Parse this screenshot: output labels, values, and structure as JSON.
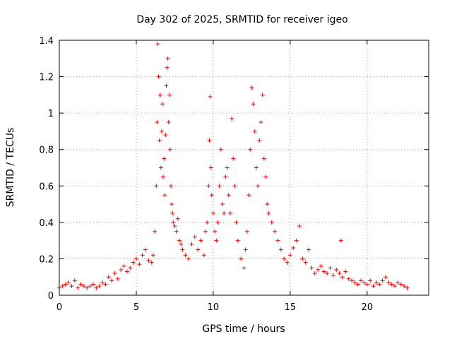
{
  "chart_data": {
    "type": "scatter",
    "title": "Day 302 of 2025, SRMTID for receiver igeo",
    "xlabel": "GPS time / hours",
    "ylabel": "SRMTID / TECUs",
    "xlim": [
      0,
      24
    ],
    "ylim": [
      0,
      1.4
    ],
    "xticks": [
      0,
      5,
      10,
      15,
      20
    ],
    "xtick_labels": [
      "0",
      "5",
      "10",
      "15",
      "20"
    ],
    "yticks": [
      0,
      0.2,
      0.4,
      0.6,
      0.8,
      1,
      1.2,
      1.4
    ],
    "ytick_labels": [
      "0",
      "0.2",
      "0.4",
      "0.6",
      "0.8",
      "1",
      "1.2",
      "1.4"
    ],
    "grid": true,
    "marker": "+",
    "series_color": "#ff0000",
    "series": [
      {
        "name": "SRMTID",
        "x": [
          0.0,
          0.2,
          0.4,
          0.6,
          0.8,
          1.0,
          1.2,
          1.4,
          1.6,
          1.8,
          2.0,
          2.2,
          2.4,
          2.6,
          2.8,
          3.0,
          3.2,
          3.4,
          3.6,
          3.8,
          4.0,
          4.2,
          4.4,
          4.6,
          4.8,
          5.0,
          5.2,
          5.4,
          5.6,
          5.8,
          6.0,
          6.1,
          6.2,
          6.3,
          6.35,
          6.4,
          6.45,
          6.5,
          6.55,
          6.6,
          6.65,
          6.7,
          6.75,
          6.8,
          6.85,
          6.9,
          6.95,
          7.0,
          7.05,
          7.1,
          7.15,
          7.2,
          7.25,
          7.3,
          7.35,
          7.4,
          7.5,
          7.6,
          7.7,
          7.8,
          7.9,
          8.0,
          8.2,
          8.4,
          8.6,
          8.8,
          9.0,
          9.2,
          9.4,
          9.5,
          9.6,
          9.7,
          9.75,
          9.8,
          9.85,
          9.9,
          10.0,
          10.1,
          10.2,
          10.3,
          10.4,
          10.5,
          10.6,
          10.7,
          10.8,
          10.9,
          11.0,
          11.1,
          11.2,
          11.3,
          11.4,
          11.5,
          11.6,
          11.8,
          12.0,
          12.1,
          12.2,
          12.3,
          12.4,
          12.5,
          12.6,
          12.7,
          12.8,
          12.9,
          13.0,
          13.1,
          13.2,
          13.3,
          13.4,
          13.5,
          13.6,
          13.8,
          14.0,
          14.2,
          14.4,
          14.6,
          14.8,
          15.0,
          15.2,
          15.4,
          15.6,
          15.8,
          16.0,
          16.2,
          16.4,
          16.6,
          16.8,
          17.0,
          17.2,
          17.4,
          17.6,
          17.8,
          18.0,
          18.2,
          18.3,
          18.4,
          18.6,
          18.8,
          19.0,
          19.2,
          19.4,
          19.6,
          19.8,
          20.0,
          20.2,
          20.4,
          20.6,
          20.8,
          21.0,
          21.2,
          21.4,
          21.6,
          21.8,
          22.0,
          22.2,
          22.4,
          22.6
        ],
        "y": [
          0.04,
          0.05,
          0.06,
          0.07,
          0.05,
          0.08,
          0.04,
          0.06,
          0.05,
          0.04,
          0.05,
          0.06,
          0.04,
          0.05,
          0.07,
          0.06,
          0.1,
          0.08,
          0.12,
          0.09,
          0.14,
          0.16,
          0.13,
          0.15,
          0.18,
          0.2,
          0.17,
          0.22,
          0.25,
          0.19,
          0.18,
          0.22,
          0.35,
          0.6,
          0.95,
          1.38,
          1.2,
          0.85,
          1.1,
          0.7,
          0.9,
          1.05,
          0.65,
          0.75,
          0.55,
          0.88,
          1.15,
          1.25,
          1.3,
          0.95,
          1.1,
          0.8,
          0.6,
          0.5,
          0.45,
          0.4,
          0.38,
          0.35,
          0.42,
          0.3,
          0.28,
          0.25,
          0.22,
          0.2,
          0.28,
          0.32,
          0.25,
          0.3,
          0.22,
          0.35,
          0.4,
          0.6,
          0.85,
          1.09,
          0.7,
          0.55,
          0.45,
          0.35,
          0.3,
          0.4,
          0.6,
          0.8,
          0.5,
          0.45,
          0.65,
          0.7,
          0.55,
          0.45,
          0.97,
          0.75,
          0.6,
          0.4,
          0.3,
          0.2,
          0.15,
          0.25,
          0.35,
          0.55,
          0.8,
          1.14,
          1.05,
          0.9,
          0.7,
          0.6,
          0.85,
          0.95,
          1.1,
          0.75,
          0.65,
          0.5,
          0.45,
          0.4,
          0.35,
          0.3,
          0.25,
          0.2,
          0.18,
          0.22,
          0.26,
          0.3,
          0.38,
          0.2,
          0.18,
          0.25,
          0.15,
          0.12,
          0.14,
          0.16,
          0.13,
          0.12,
          0.15,
          0.11,
          0.14,
          0.12,
          0.3,
          0.1,
          0.13,
          0.09,
          0.08,
          0.07,
          0.06,
          0.08,
          0.07,
          0.06,
          0.08,
          0.05,
          0.07,
          0.06,
          0.08,
          0.1,
          0.07,
          0.06,
          0.05,
          0.07,
          0.06,
          0.05,
          0.04
        ]
      }
    ]
  }
}
